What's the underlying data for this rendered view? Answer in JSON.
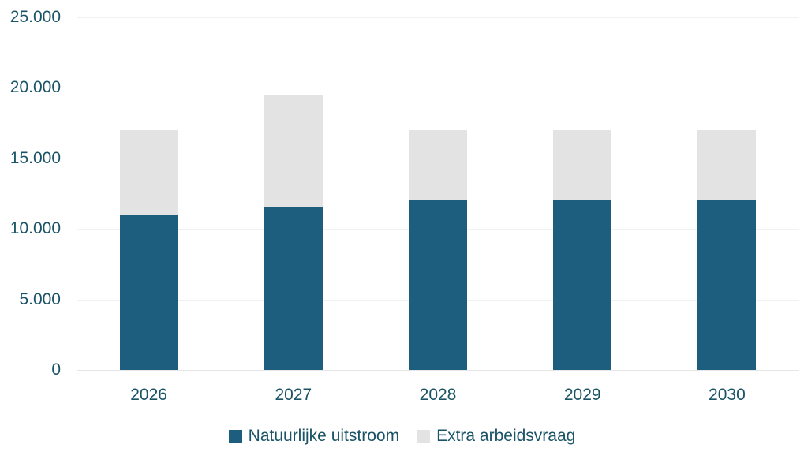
{
  "chart_data": {
    "type": "bar",
    "stacked": true,
    "title": "",
    "xlabel": "",
    "ylabel": "",
    "categories": [
      "2026",
      "2027",
      "2028",
      "2029",
      "2030"
    ],
    "series": [
      {
        "name": "Natuurlijke uitstroom",
        "color": "#1d5e7e",
        "values": [
          11000,
          11500,
          12000,
          12000,
          12000
        ]
      },
      {
        "name": "Extra arbeidsvraag",
        "color": "#e3e3e3",
        "values": [
          6000,
          8000,
          5000,
          5000,
          5000
        ]
      }
    ],
    "totals": [
      17000,
      19500,
      17000,
      17000,
      17000
    ],
    "ylim": [
      0,
      25000
    ],
    "y_ticks": [
      {
        "value": 25000,
        "label": "25.000"
      },
      {
        "value": 20000,
        "label": "20.000"
      },
      {
        "value": 15000,
        "label": "15.000"
      },
      {
        "value": 10000,
        "label": "10.000"
      },
      {
        "value": 5000,
        "label": "5.000"
      },
      {
        "value": 0,
        "label": "0"
      }
    ],
    "grid": true,
    "legend_position": "bottom",
    "colors": {
      "axis_text": "#1a5366",
      "gridline": "#f1f1f1",
      "axis_line": "#e6e6e6",
      "background": "#ffffff"
    }
  }
}
